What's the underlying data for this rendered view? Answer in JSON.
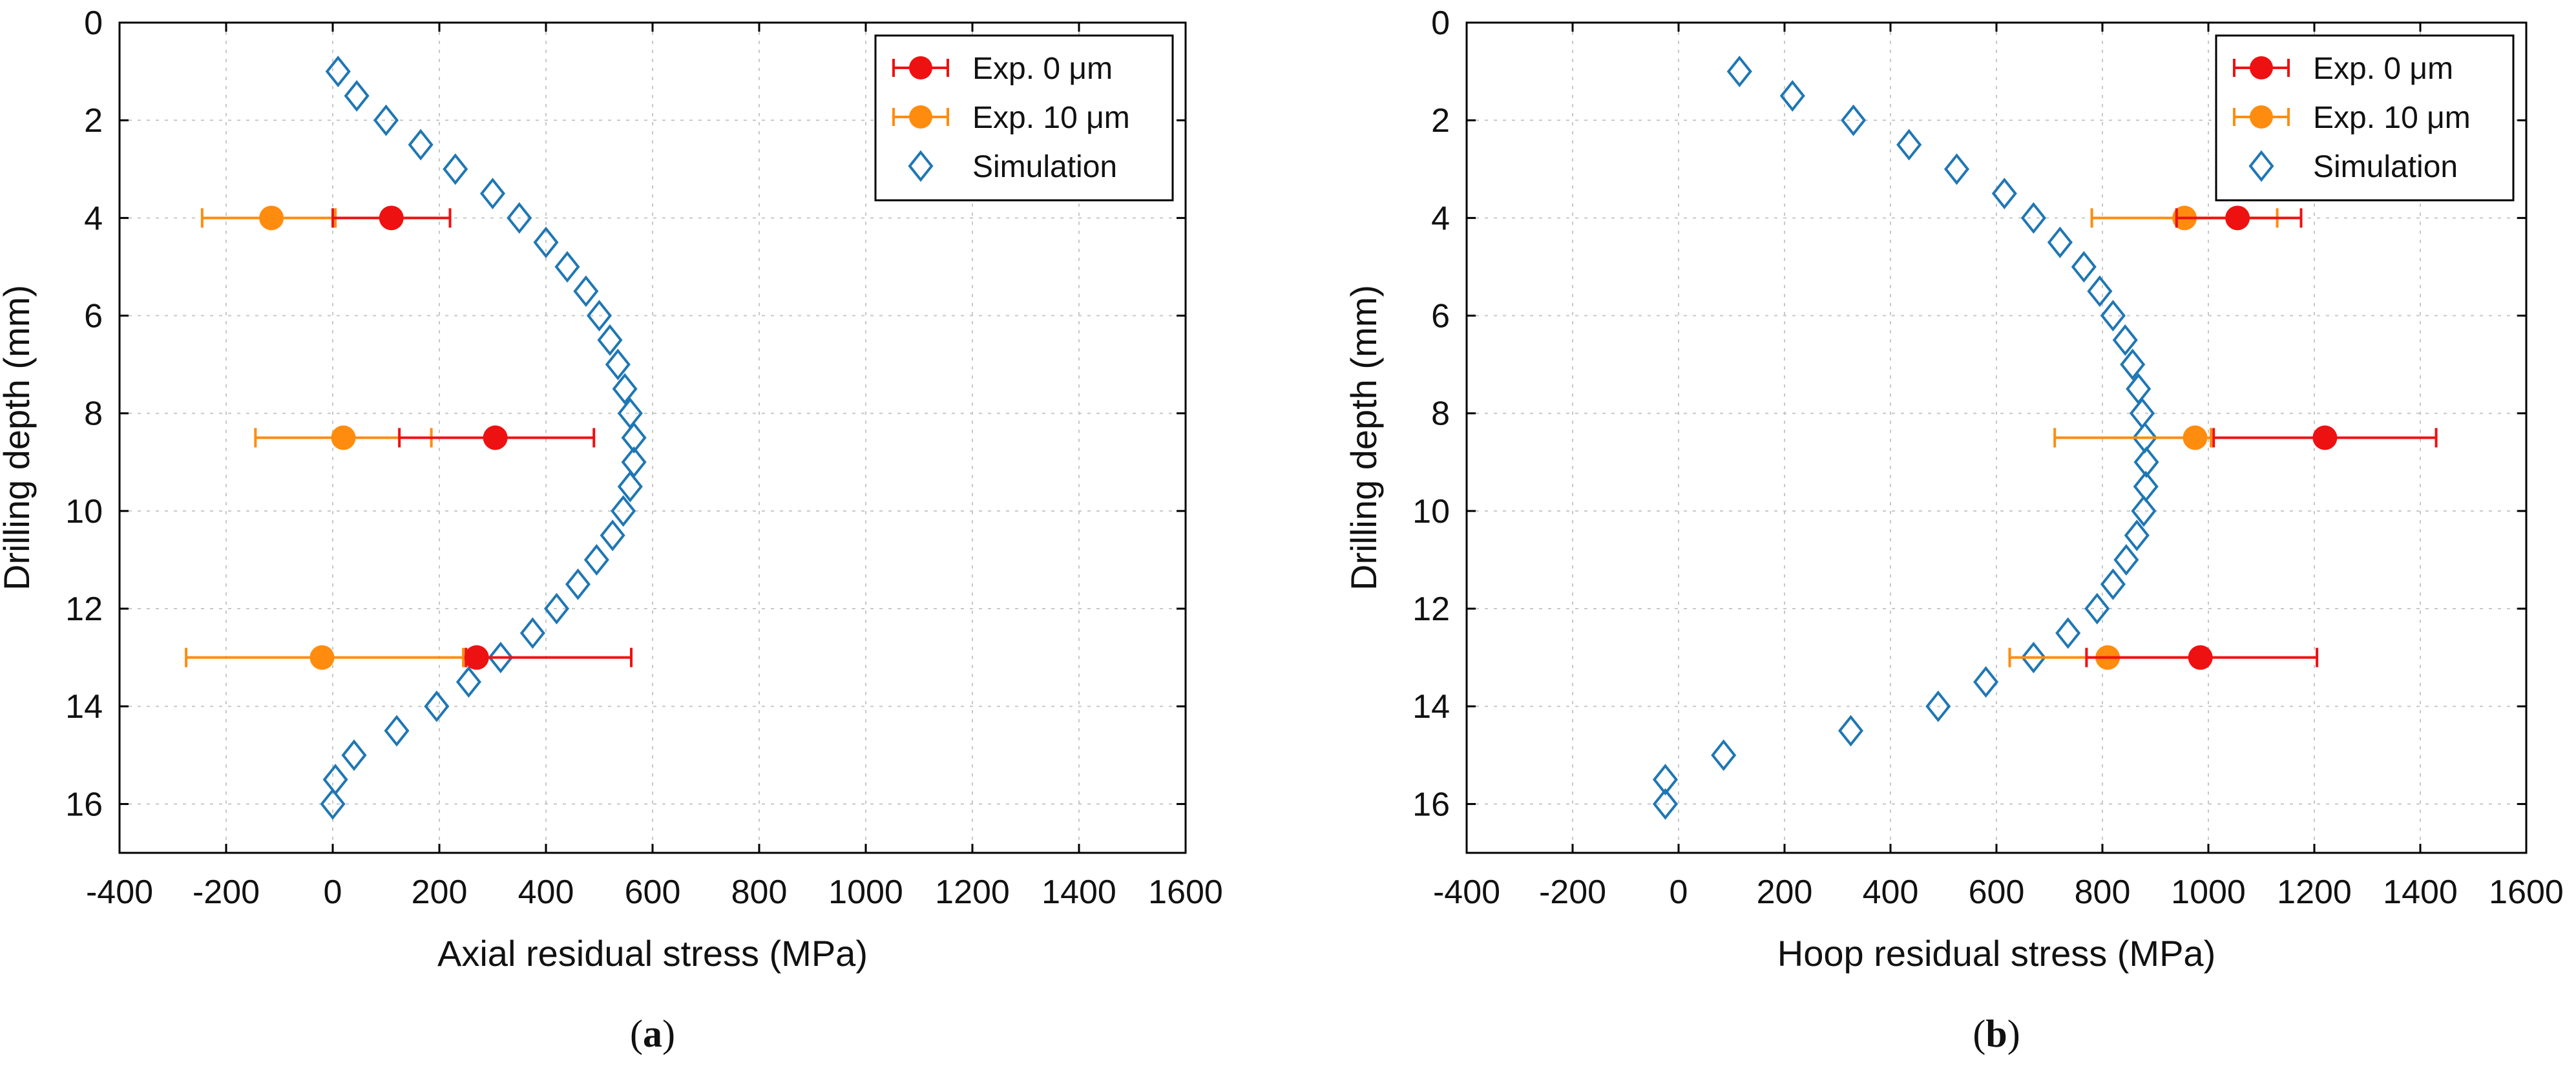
{
  "colors": {
    "exp0": "#ee1111",
    "exp10": "#ff8c0f",
    "sim": "#1f77b4"
  },
  "chart_data": [
    {
      "type": "scatter",
      "panel_label": "a",
      "xlabel": "Axial residual stress (MPa)",
      "ylabel": "Drilling depth (mm)",
      "xlim": [
        -400,
        1600
      ],
      "ylim": [
        0,
        17
      ],
      "y_inverted": true,
      "grid": true,
      "legend_position": "top-right",
      "xticks": [
        -400,
        -200,
        0,
        200,
        400,
        600,
        800,
        1000,
        1200,
        1400,
        1600
      ],
      "yticks": [
        0,
        2,
        4,
        6,
        8,
        10,
        12,
        14,
        16
      ],
      "legend": [
        {
          "label": "Exp.  0 μm",
          "series": "exp0"
        },
        {
          "label": "Exp. 10 μm",
          "series": "exp10"
        },
        {
          "label": "Simulation",
          "series": "sim"
        }
      ],
      "series": [
        {
          "key": "exp0",
          "name": "Exp.  0 μm",
          "marker": "circle",
          "error_bars": true,
          "points": [
            {
              "x": 110,
              "y": 4,
              "xmin": 0,
              "xmax": 220
            },
            {
              "x": 305,
              "y": 8.5,
              "xmin": 125,
              "xmax": 490
            },
            {
              "x": 270,
              "y": 13,
              "xmin": 250,
              "xmax": 560
            }
          ]
        },
        {
          "key": "exp10",
          "name": "Exp. 10 μm",
          "marker": "circle",
          "error_bars": true,
          "points": [
            {
              "x": -115,
              "y": 4,
              "xmin": -245,
              "xmax": 5
            },
            {
              "x": 20,
              "y": 8.5,
              "xmin": -145,
              "xmax": 185
            },
            {
              "x": -20,
              "y": 13,
              "xmin": -275,
              "xmax": 245
            }
          ]
        },
        {
          "key": "sim",
          "name": "Simulation",
          "marker": "diamond",
          "points": [
            {
              "x": 10,
              "y": 1
            },
            {
              "x": 45,
              "y": 1.5
            },
            {
              "x": 100,
              "y": 2
            },
            {
              "x": 165,
              "y": 2.5
            },
            {
              "x": 230,
              "y": 3
            },
            {
              "x": 300,
              "y": 3.5
            },
            {
              "x": 350,
              "y": 4
            },
            {
              "x": 400,
              "y": 4.5
            },
            {
              "x": 440,
              "y": 5
            },
            {
              "x": 475,
              "y": 5.5
            },
            {
              "x": 500,
              "y": 6
            },
            {
              "x": 520,
              "y": 6.5
            },
            {
              "x": 535,
              "y": 7
            },
            {
              "x": 548,
              "y": 7.5
            },
            {
              "x": 558,
              "y": 8
            },
            {
              "x": 565,
              "y": 8.5
            },
            {
              "x": 565,
              "y": 9
            },
            {
              "x": 558,
              "y": 9.5
            },
            {
              "x": 545,
              "y": 10
            },
            {
              "x": 525,
              "y": 10.5
            },
            {
              "x": 495,
              "y": 11
            },
            {
              "x": 460,
              "y": 11.5
            },
            {
              "x": 420,
              "y": 12
            },
            {
              "x": 375,
              "y": 12.5
            },
            {
              "x": 315,
              "y": 13
            },
            {
              "x": 255,
              "y": 13.5
            },
            {
              "x": 195,
              "y": 14
            },
            {
              "x": 120,
              "y": 14.5
            },
            {
              "x": 40,
              "y": 15
            },
            {
              "x": 5,
              "y": 15.5
            },
            {
              "x": 0,
              "y": 16
            }
          ]
        }
      ]
    },
    {
      "type": "scatter",
      "panel_label": "b",
      "xlabel": "Hoop residual stress (MPa)",
      "ylabel": "Drilling depth (mm)",
      "xlim": [
        -400,
        1600
      ],
      "ylim": [
        0,
        17
      ],
      "y_inverted": true,
      "grid": true,
      "legend_position": "top-right",
      "xticks": [
        -400,
        -200,
        0,
        200,
        400,
        600,
        800,
        1000,
        1200,
        1400,
        1600
      ],
      "yticks": [
        0,
        2,
        4,
        6,
        8,
        10,
        12,
        14,
        16
      ],
      "legend": [
        {
          "label": "Exp.  0 μm",
          "series": "exp0"
        },
        {
          "label": "Exp. 10 μm",
          "series": "exp10"
        },
        {
          "label": "Simulation",
          "series": "sim"
        }
      ],
      "series": [
        {
          "key": "exp0",
          "name": "Exp.  0 μm",
          "marker": "circle",
          "error_bars": true,
          "points": [
            {
              "x": 1055,
              "y": 4,
              "xmin": 940,
              "xmax": 1175
            },
            {
              "x": 1220,
              "y": 8.5,
              "xmin": 1010,
              "xmax": 1430
            },
            {
              "x": 985,
              "y": 13,
              "xmin": 770,
              "xmax": 1205
            }
          ]
        },
        {
          "key": "exp10",
          "name": "Exp. 10 μm",
          "marker": "circle",
          "error_bars": true,
          "points": [
            {
              "x": 955,
              "y": 4,
              "xmin": 780,
              "xmax": 1130
            },
            {
              "x": 975,
              "y": 8.5,
              "xmin": 710,
              "xmax": 1005
            },
            {
              "x": 810,
              "y": 13,
              "xmin": 625,
              "xmax": 985
            }
          ]
        },
        {
          "key": "sim",
          "name": "Simulation",
          "marker": "diamond",
          "points": [
            {
              "x": 115,
              "y": 1
            },
            {
              "x": 215,
              "y": 1.5
            },
            {
              "x": 330,
              "y": 2
            },
            {
              "x": 435,
              "y": 2.5
            },
            {
              "x": 525,
              "y": 3
            },
            {
              "x": 615,
              "y": 3.5
            },
            {
              "x": 670,
              "y": 4
            },
            {
              "x": 720,
              "y": 4.5
            },
            {
              "x": 765,
              "y": 5
            },
            {
              "x": 795,
              "y": 5.5
            },
            {
              "x": 820,
              "y": 6
            },
            {
              "x": 843,
              "y": 6.5
            },
            {
              "x": 857,
              "y": 7
            },
            {
              "x": 868,
              "y": 7.5
            },
            {
              "x": 875,
              "y": 8
            },
            {
              "x": 880,
              "y": 8.5
            },
            {
              "x": 883,
              "y": 9
            },
            {
              "x": 882,
              "y": 9.5
            },
            {
              "x": 878,
              "y": 10
            },
            {
              "x": 865,
              "y": 10.5
            },
            {
              "x": 845,
              "y": 11
            },
            {
              "x": 820,
              "y": 11.5
            },
            {
              "x": 790,
              "y": 12
            },
            {
              "x": 735,
              "y": 12.5
            },
            {
              "x": 670,
              "y": 13
            },
            {
              "x": 580,
              "y": 13.5
            },
            {
              "x": 490,
              "y": 14
            },
            {
              "x": 325,
              "y": 14.5
            },
            {
              "x": 85,
              "y": 15
            },
            {
              "x": -25,
              "y": 15.5
            },
            {
              "x": -25,
              "y": 16
            }
          ]
        }
      ]
    }
  ]
}
